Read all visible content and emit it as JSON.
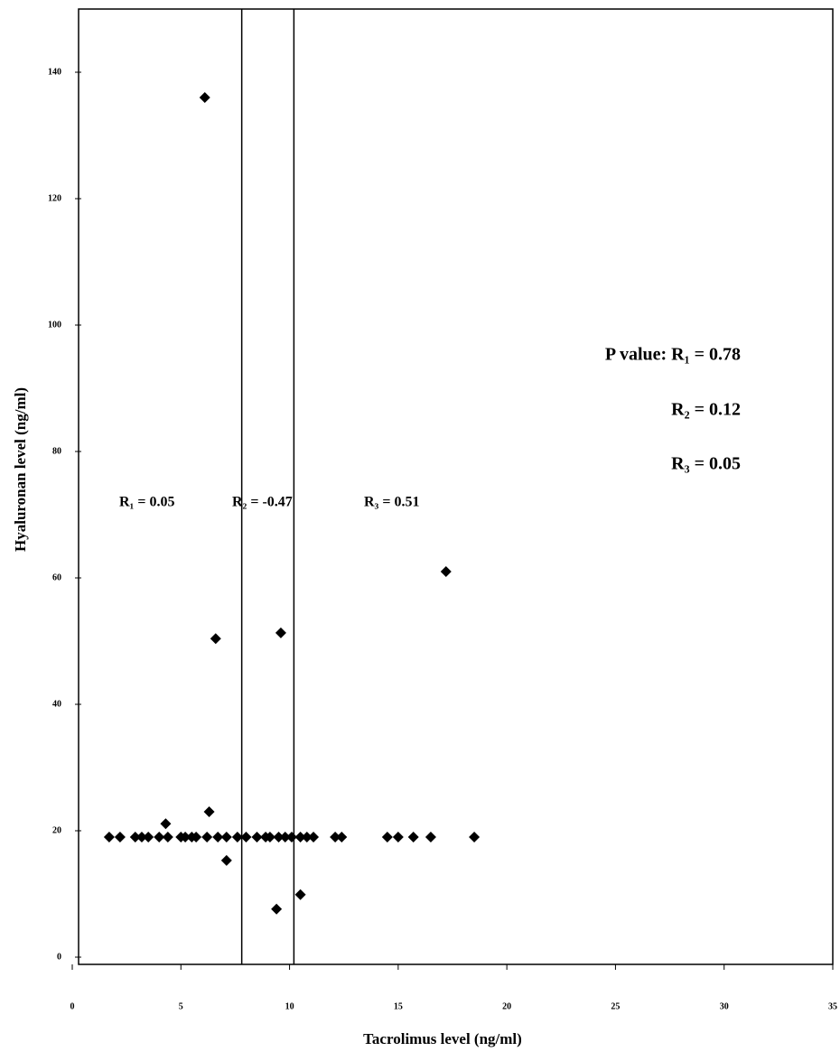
{
  "chart_data": {
    "type": "scatter",
    "xlabel": "Tacrolimus level (ng/ml)",
    "ylabel": "Hyaluronan level (ng/ml)",
    "x": [
      1.7,
      2.2,
      2.9,
      3.2,
      3.5,
      4.0,
      4.4,
      5.0,
      5.2,
      5.5,
      5.7,
      6.2,
      6.7,
      7.1,
      7.6,
      8.0,
      8.5,
      8.9,
      9.1,
      9.5,
      9.8,
      10.1,
      10.5,
      10.8,
      11.1,
      12.1,
      12.4,
      14.5,
      15.0,
      15.7,
      16.5,
      18.5,
      6.1,
      6.6,
      9.6,
      17.2,
      6.3,
      4.3,
      7.1,
      10.5,
      9.4
    ],
    "values": [
      19,
      19,
      19,
      19,
      19,
      19,
      19,
      19,
      19,
      19,
      19,
      19,
      19,
      19,
      19,
      19,
      19,
      19,
      19,
      19,
      19,
      19,
      19,
      19,
      19,
      19,
      19,
      19,
      19,
      19,
      19,
      19,
      136,
      50.4,
      51.3,
      61,
      23,
      21.1,
      15.3,
      9.9,
      7.6
    ],
    "color": "#000000",
    "xlim": [
      0,
      35
    ],
    "xticks": [
      0,
      5,
      10,
      15,
      20,
      25,
      30,
      35
    ],
    "ylim": [
      0,
      150
    ],
    "yticks": [
      0,
      20,
      40,
      60,
      80,
      100,
      120,
      140
    ],
    "reference_lines": [
      7.8,
      10.2
    ],
    "annotations": [
      "R₁ = 0.05",
      "R₂ = -0.47",
      "R₃ = 0.51"
    ],
    "p_values": [
      "P value: R₁ = 0.78",
      "R₂ = 0.12",
      "R₃ = 0.05"
    ]
  }
}
